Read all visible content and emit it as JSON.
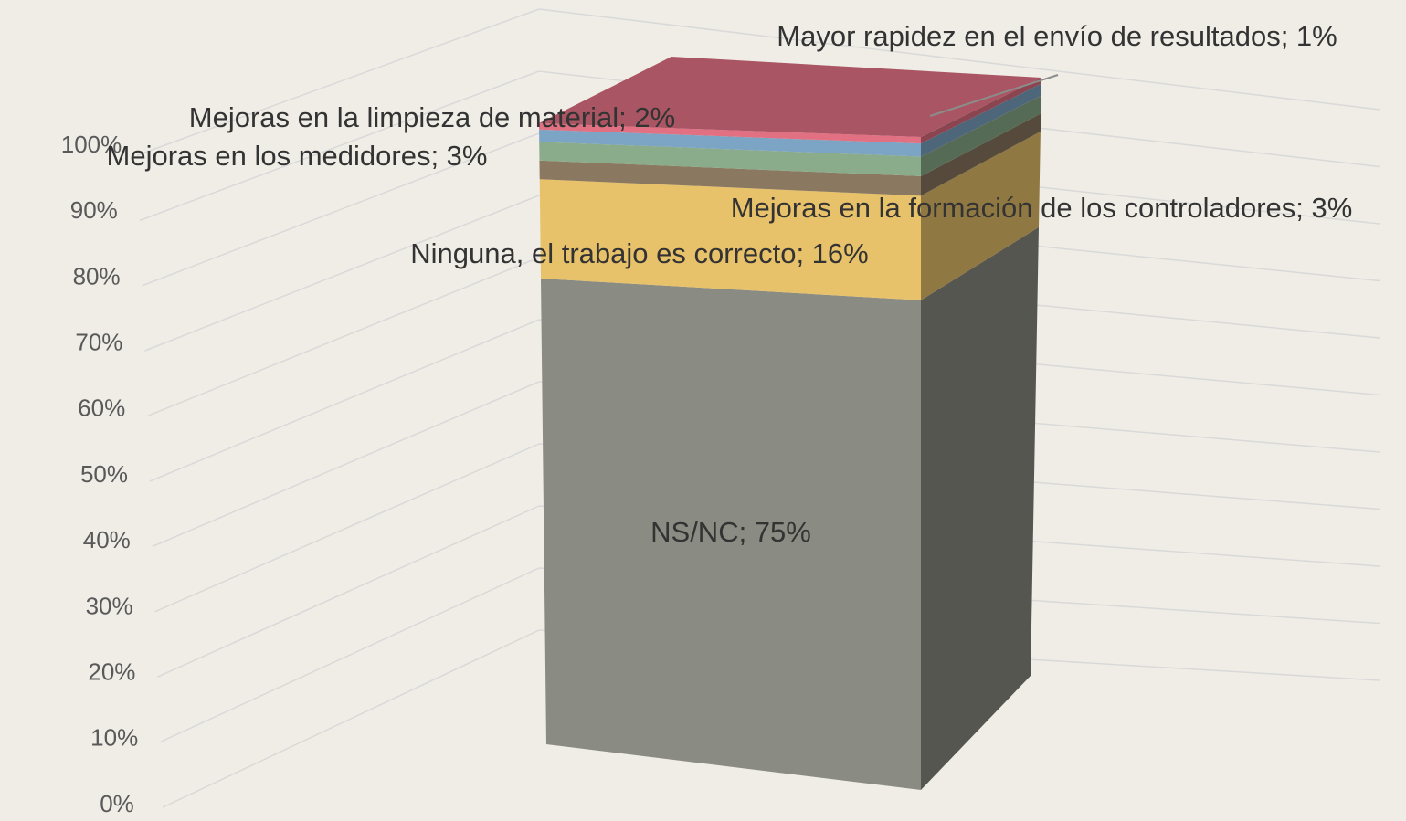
{
  "chart_data": {
    "type": "bar3d_stacked",
    "categories": [
      null
    ],
    "series": [
      {
        "name": "NS/NC",
        "color": "#8a8b82",
        "values": [
          75
        ],
        "value_labels": [
          "NS/NC; 75%"
        ]
      },
      {
        "name": "Ninguna, el trabajo es correcto",
        "color": "#e8c26a",
        "values": [
          16
        ],
        "value_labels": [
          "Ninguna, el trabajo es correcto; 16%"
        ]
      },
      {
        "name": "Mejoras en la formación de los controladores",
        "color": "#8a7860",
        "values": [
          3
        ],
        "value_labels": [
          "Mejoras en la formación de los controladores; 3%"
        ]
      },
      {
        "name": "Mejoras en los medidores",
        "color": "#8aac8a",
        "values": [
          3
        ],
        "value_labels": [
          "Mejoras en los medidores; 3%"
        ]
      },
      {
        "name": "Mejoras en la limpieza de material",
        "color": "#7ca4c4",
        "values": [
          2
        ],
        "value_labels": [
          "Mejoras en la limpieza de material; 2%"
        ]
      },
      {
        "name": "Mayor rapidez en el envío de resultados",
        "color": "#e07082",
        "values": [
          1
        ],
        "value_labels": [
          "Mayor rapidez en el envío de resultados; 1%"
        ]
      }
    ],
    "ylim": [
      0,
      100
    ],
    "yticks": [
      {
        "value": 0,
        "label": "0%"
      },
      {
        "value": 10,
        "label": "10%"
      },
      {
        "value": 20,
        "label": "20%"
      },
      {
        "value": 30,
        "label": "30%"
      },
      {
        "value": 40,
        "label": "40%"
      },
      {
        "value": 50,
        "label": "50%"
      },
      {
        "value": 60,
        "label": "60%"
      },
      {
        "value": 70,
        "label": "70%"
      },
      {
        "value": 80,
        "label": "80%"
      },
      {
        "value": 90,
        "label": "90%"
      },
      {
        "value": 100,
        "label": "100%"
      }
    ],
    "grid": true
  }
}
